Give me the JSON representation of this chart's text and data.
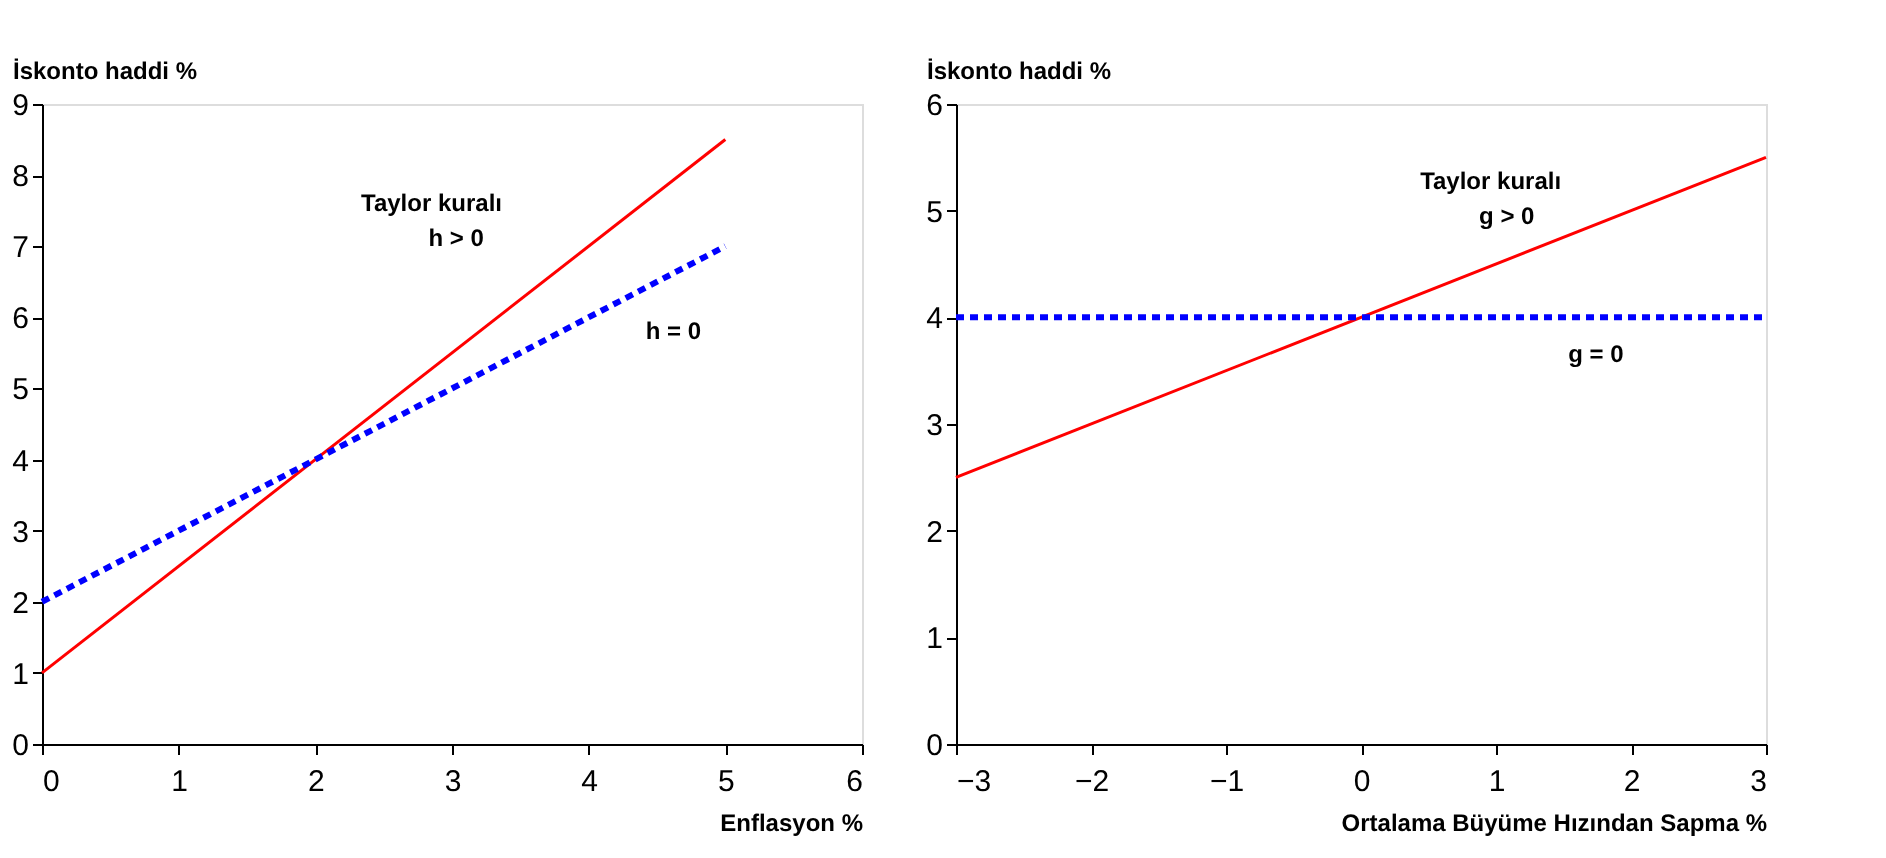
{
  "chart_data": [
    {
      "type": "line",
      "ylabel": "İskonto haddi %",
      "xlabel": "Enflasyon %",
      "x": [
        0,
        5
      ],
      "xlim": [
        0,
        6
      ],
      "xticks": [
        0,
        1,
        2,
        3,
        4,
        5,
        6
      ],
      "ylim": [
        0,
        9
      ],
      "yticks": [
        0,
        1,
        2,
        3,
        4,
        5,
        6,
        7,
        8,
        9
      ],
      "grid": false,
      "series": [
        {
          "color": "#ff0000",
          "line_style": "solid",
          "values": [
            1,
            8.5
          ]
        },
        {
          "color": "#0000ff",
          "line_style": "dotted",
          "values": [
            2,
            7
          ]
        }
      ],
      "annotations": [
        "Taylor kuralı",
        "h > 0",
        "h = 0"
      ]
    },
    {
      "type": "line",
      "ylabel": "İskonto haddi %",
      "xlabel": "Ortalama Büyüme Hızından Sapma %",
      "x": [
        -3,
        3
      ],
      "xlim": [
        -3,
        3
      ],
      "xticks": [
        -3,
        -2,
        -1,
        0,
        1,
        2,
        3
      ],
      "ylim": [
        0,
        6
      ],
      "yticks": [
        0,
        1,
        2,
        3,
        4,
        5,
        6
      ],
      "grid": false,
      "series": [
        {
          "color": "#ff0000",
          "line_style": "solid",
          "values": [
            2.5,
            5.5
          ]
        },
        {
          "color": "#0000ff",
          "line_style": "dotted",
          "values": [
            4,
            4
          ]
        }
      ],
      "annotations": [
        "Taylor kuralı",
        "g > 0",
        "g = 0"
      ]
    }
  ]
}
